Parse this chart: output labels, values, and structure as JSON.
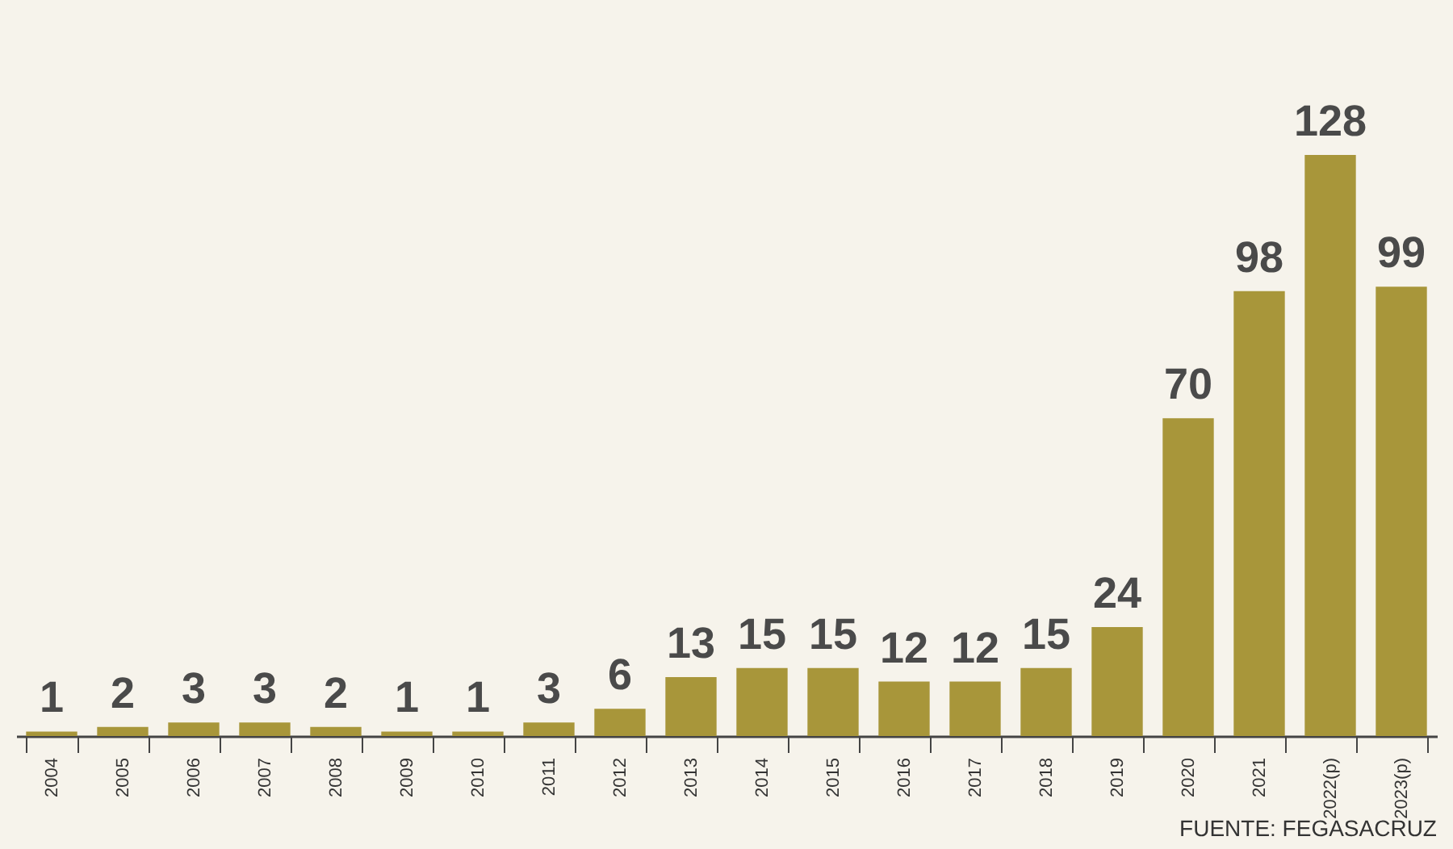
{
  "chart_data": {
    "type": "bar",
    "categories": [
      "2004",
      "2005",
      "2006",
      "2007",
      "2008",
      "2009",
      "2010",
      "2011",
      "2012",
      "2013",
      "2014",
      "2015",
      "2016",
      "2017",
      "2018",
      "2019",
      "2020",
      "2021",
      "2022(p)",
      "2023(p)"
    ],
    "values": [
      1,
      2,
      3,
      3,
      2,
      1,
      1,
      3,
      6,
      13,
      15,
      15,
      12,
      12,
      15,
      24,
      70,
      98,
      128,
      99
    ],
    "color": "#a8963a",
    "data_labels": true,
    "annotations": [
      "FUENTE: FEGASACRUZ"
    ]
  }
}
